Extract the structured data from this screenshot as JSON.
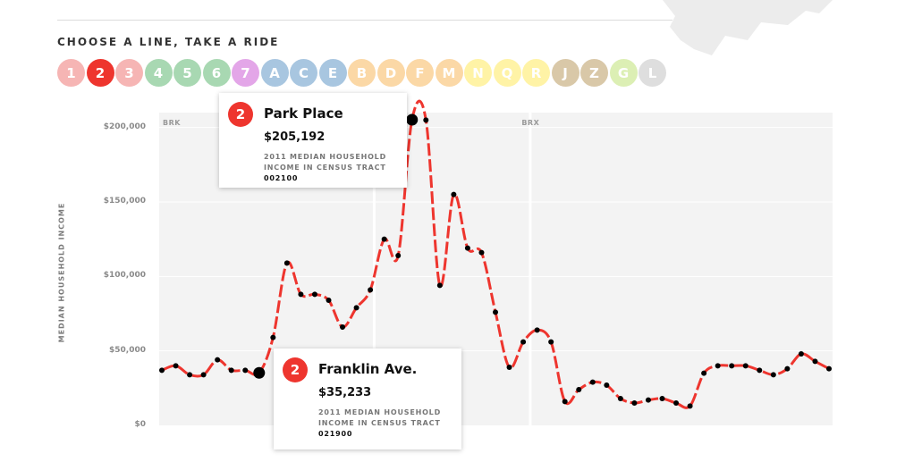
{
  "header": {
    "title": "CHOOSE A LINE, TAKE A RIDE"
  },
  "lines": [
    {
      "label": "1",
      "color": "#f6b5b4",
      "active": false
    },
    {
      "label": "2",
      "color": "#ee352e",
      "active": true
    },
    {
      "label": "3",
      "color": "#f6b5b4",
      "active": false
    },
    {
      "label": "4",
      "color": "#a8d8b2",
      "active": false
    },
    {
      "label": "5",
      "color": "#a8d8b2",
      "active": false
    },
    {
      "label": "6",
      "color": "#a8d8b2",
      "active": false
    },
    {
      "label": "7",
      "color": "#e3a6e8",
      "active": false
    },
    {
      "label": "A",
      "color": "#a8c6e0",
      "active": false
    },
    {
      "label": "C",
      "color": "#a8c6e0",
      "active": false
    },
    {
      "label": "E",
      "color": "#a8c6e0",
      "active": false
    },
    {
      "label": "B",
      "color": "#fbd8a6",
      "active": false
    },
    {
      "label": "D",
      "color": "#fbd8a6",
      "active": false
    },
    {
      "label": "F",
      "color": "#fbd8a6",
      "active": false
    },
    {
      "label": "M",
      "color": "#fbd8a6",
      "active": false
    },
    {
      "label": "N",
      "color": "#fff3a6",
      "active": false
    },
    {
      "label": "Q",
      "color": "#fff3a6",
      "active": false
    },
    {
      "label": "R",
      "color": "#fff3a6",
      "active": false
    },
    {
      "label": "J",
      "color": "#d9c8a8",
      "active": false
    },
    {
      "label": "Z",
      "color": "#d9c8a8",
      "active": false
    },
    {
      "label": "G",
      "color": "#dcefb4",
      "active": false
    },
    {
      "label": "L",
      "color": "#dedede",
      "active": false
    }
  ],
  "chart_data": {
    "type": "line",
    "ylabel": "MEDIAN HOUSEHOLD INCOME",
    "yticks": [
      {
        "value": 0,
        "label": "$0"
      },
      {
        "value": 50000,
        "label": "$50,000"
      },
      {
        "value": 100000,
        "label": "$100,000"
      },
      {
        "value": 150000,
        "label": "$150,000"
      },
      {
        "value": 200000,
        "label": "$200,000"
      }
    ],
    "ylim": [
      0,
      210000
    ],
    "grid": true,
    "line_color": "#ee352e",
    "boroughs": [
      {
        "label": "BRK",
        "start_stop": 0
      },
      {
        "label": "BRX",
        "start_stop": 26
      }
    ],
    "boundaries": [
      14,
      26
    ],
    "series": [
      {
        "values": [
          37000,
          40000,
          34000,
          34000,
          44000,
          37000,
          37000,
          35233,
          59000,
          109000,
          88000,
          88000,
          84000,
          66000,
          79000,
          91000,
          125000,
          114000,
          205192,
          205000,
          94000,
          155000,
          119000,
          116000,
          76000,
          39000,
          56000,
          64000,
          56000,
          16000,
          24000,
          29000,
          27000,
          18000,
          15000,
          17000,
          18000,
          15000,
          13000,
          35000,
          40000,
          40000,
          40000,
          37000,
          34000,
          38000,
          48000,
          43000,
          38000
        ]
      }
    ],
    "highlights": [
      {
        "index": 7,
        "size": "large"
      },
      {
        "index": 18,
        "size": "large"
      }
    ]
  },
  "tooltips": [
    {
      "line": "2",
      "stop": "Park Place",
      "income": "$205,192",
      "caption": "2011 MEDIAN HOUSEHOLD INCOME IN CENSUS TRACT",
      "tract": "002100"
    },
    {
      "line": "2",
      "stop": "Franklin Ave.",
      "income": "$35,233",
      "caption": "2011 MEDIAN HOUSEHOLD INCOME IN CENSUS TRACT",
      "tract": "021900"
    }
  ]
}
